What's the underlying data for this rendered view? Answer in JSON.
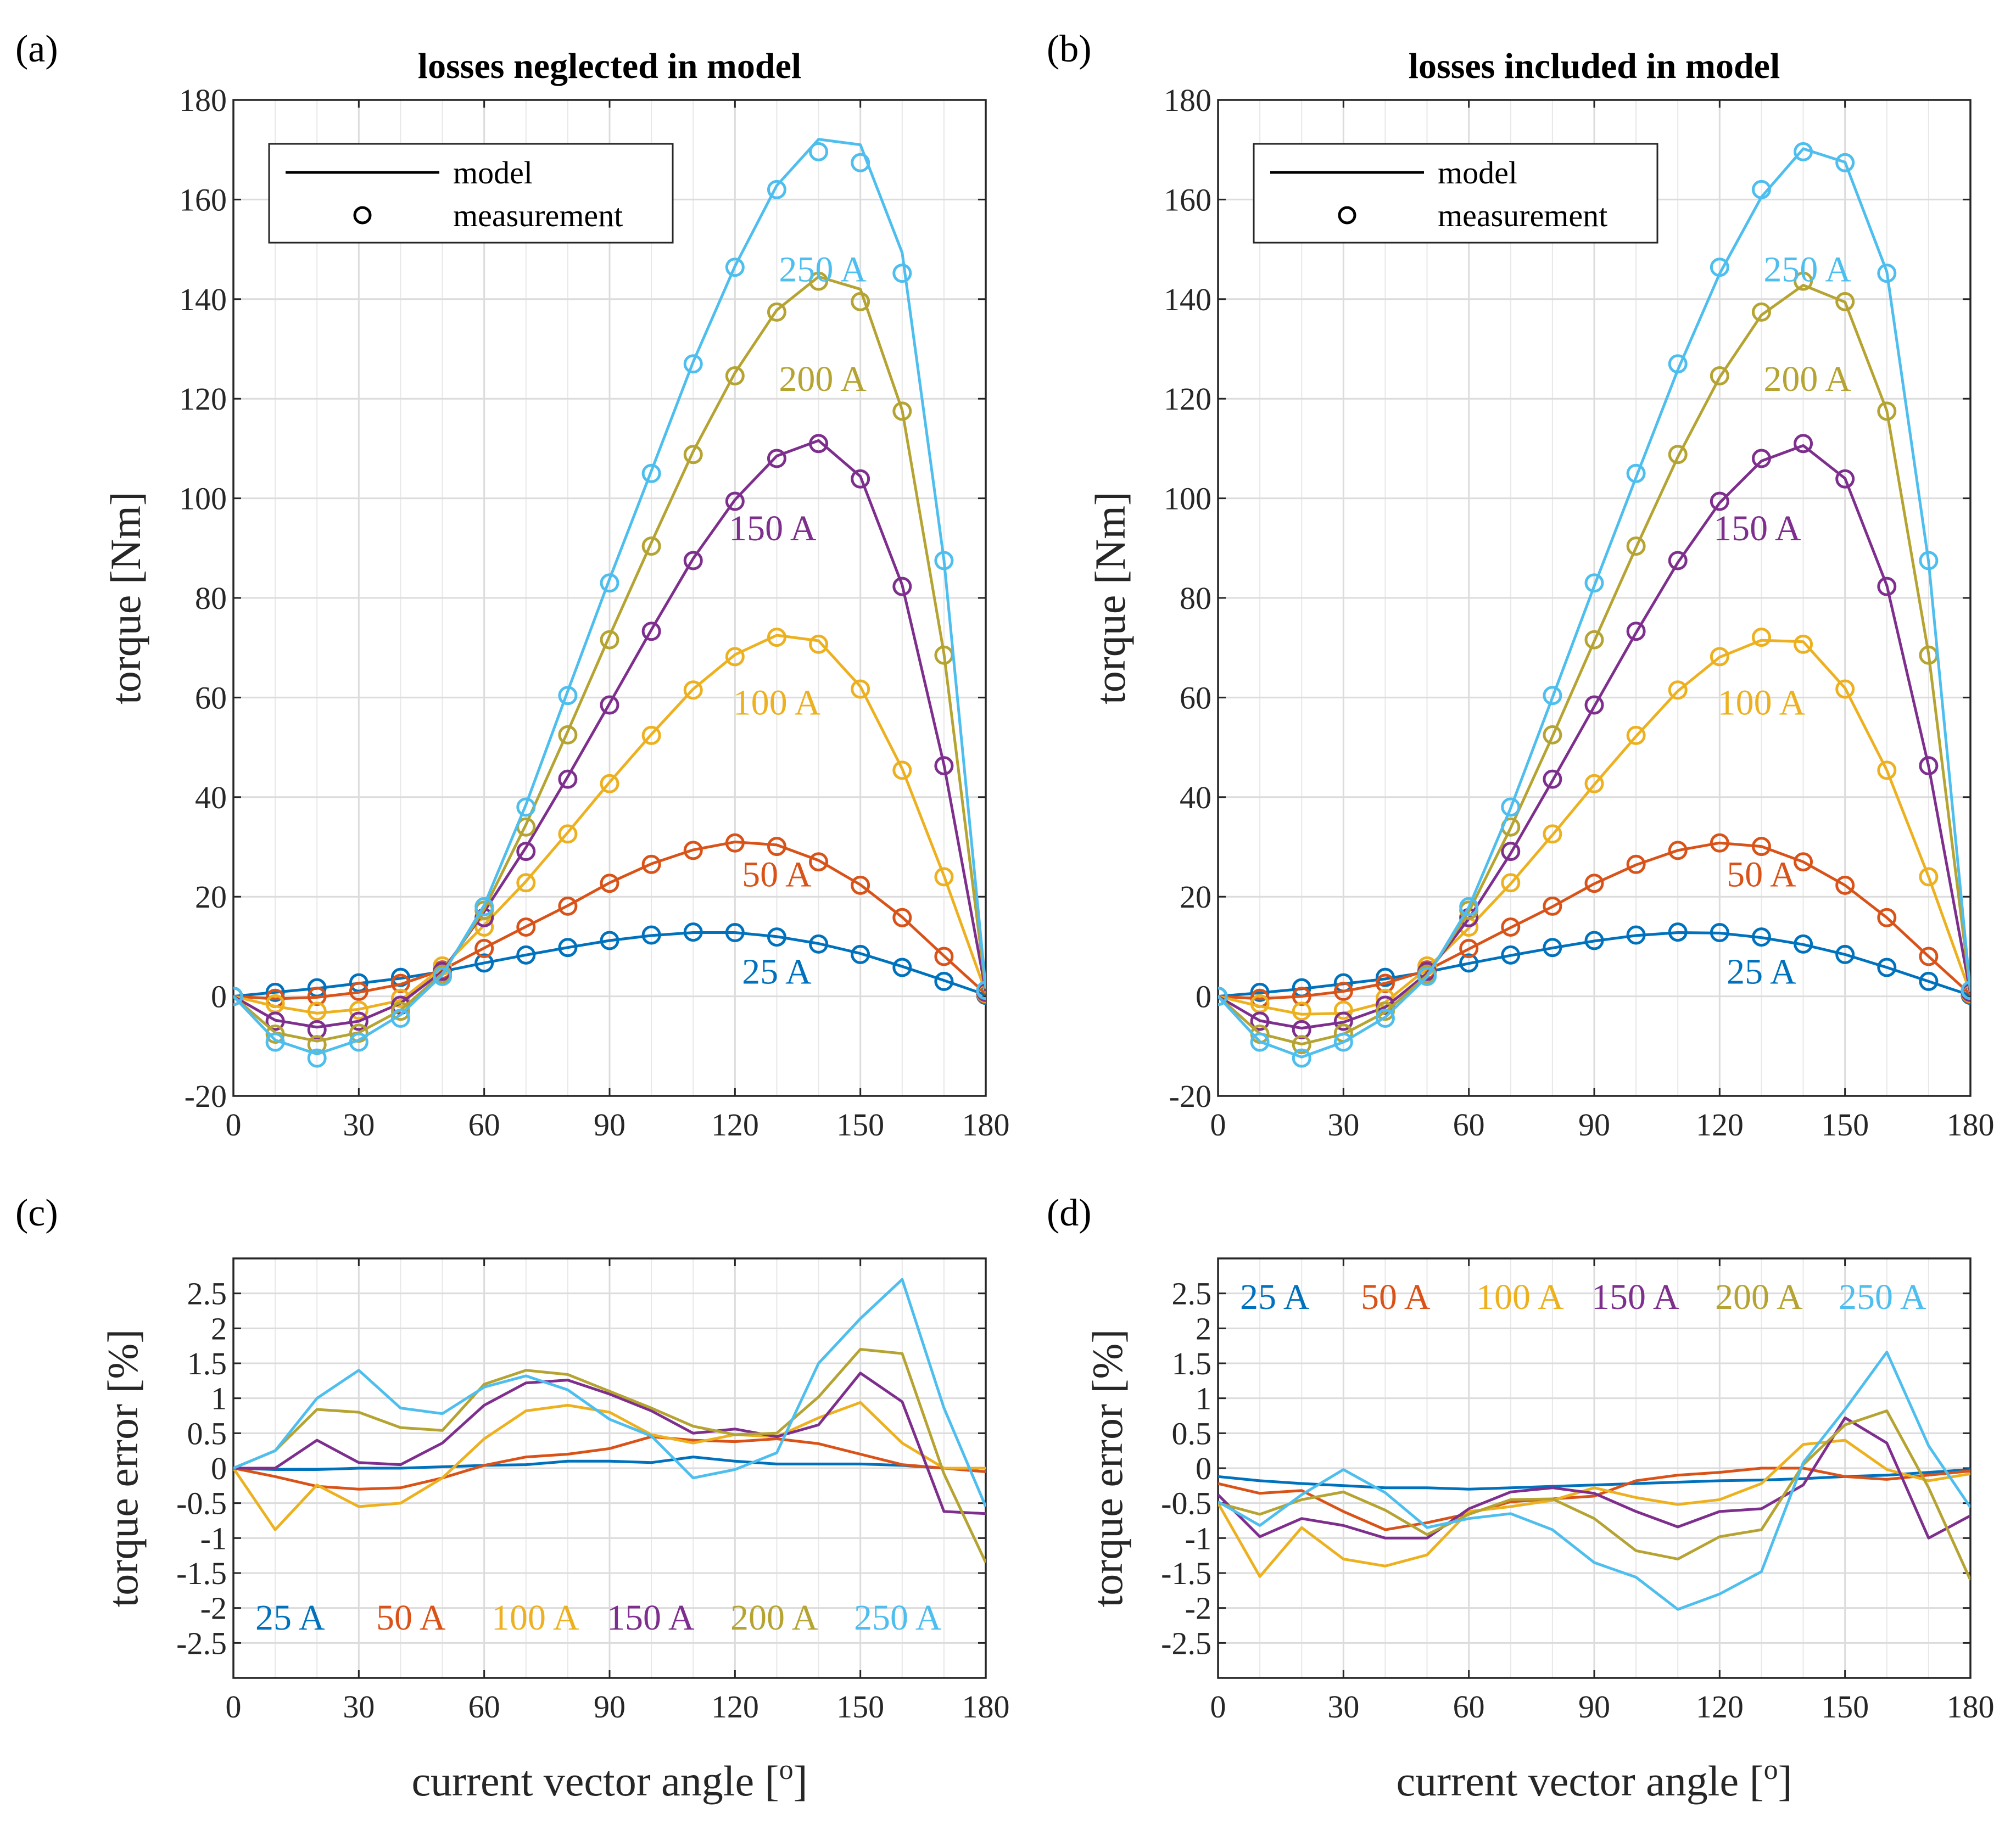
{
  "figure": {
    "colors": {
      "25 A": "#0072BD",
      "50 A": "#D95319",
      "100 A": "#EDB120",
      "150 A": "#7E2F8E",
      "200 A": "#B5A332",
      "250 A": "#4DBEEE"
    }
  },
  "chart_data": [
    {
      "id": "a",
      "type": "line",
      "panel_label": "(a)",
      "title": "losses neglected in model",
      "xlabel": "",
      "ylabel": "torque [Nm]",
      "xlim": [
        0,
        180
      ],
      "ylim": [
        -20,
        180
      ],
      "xticks": [
        0,
        30,
        60,
        90,
        120,
        150,
        180
      ],
      "yticks": [
        -20,
        0,
        20,
        40,
        60,
        80,
        100,
        120,
        140,
        160,
        180
      ],
      "grid": true,
      "legend": {
        "position": "top-left",
        "entries": [
          "model",
          "measurement"
        ]
      },
      "x": [
        0,
        10,
        20,
        30,
        40,
        50,
        60,
        70,
        80,
        90,
        100,
        110,
        120,
        130,
        140,
        150,
        160,
        170,
        180
      ],
      "series": [
        {
          "name": "25 A",
          "label_x": 130,
          "label_y": 5,
          "model": [
            0,
            0.8,
            1.6,
            2.6,
            3.6,
            5,
            6.7,
            8.3,
            9.8,
            11.2,
            12.2,
            12.8,
            12.8,
            12,
            10.6,
            8.6,
            6,
            3.2,
            0.3
          ],
          "measurement": [
            0,
            0.8,
            1.7,
            2.7,
            3.8,
            5,
            6.7,
            8.3,
            9.8,
            11.2,
            12.3,
            12.9,
            12.8,
            11.9,
            10.5,
            8.4,
            5.8,
            3,
            0.2
          ]
        },
        {
          "name": "50 A",
          "label_x": 130,
          "label_y": 24.5,
          "model": [
            0,
            -0.5,
            -0.2,
            0.8,
            2.4,
            5.3,
            9.7,
            14,
            18.2,
            22.8,
            26.6,
            29.4,
            31,
            30.4,
            27.3,
            22.4,
            15.9,
            8.1,
            0.5
          ],
          "measurement": [
            0,
            -0.4,
            0,
            1,
            2.6,
            5.3,
            9.6,
            13.9,
            18.1,
            22.7,
            26.5,
            29.3,
            30.8,
            30.1,
            27,
            22.3,
            15.8,
            8,
            0.4
          ]
        },
        {
          "name": "100 A",
          "label_x": 130,
          "label_y": 59,
          "model": [
            0,
            -2,
            -3.4,
            -2.6,
            -0.8,
            5.8,
            14.3,
            23.1,
            32.9,
            43,
            52.6,
            61.7,
            68.6,
            72.5,
            71.4,
            62.2,
            45.7,
            24.2,
            0.8
          ],
          "measurement": [
            0,
            -1.5,
            -3,
            -2.8,
            -0.4,
            6.1,
            13.9,
            22.8,
            32.6,
            42.7,
            52.4,
            61.5,
            68.2,
            72.1,
            70.7,
            61.7,
            45.4,
            24,
            0.6
          ]
        },
        {
          "name": "150 A",
          "label_x": 129,
          "label_y": 94,
          "model": [
            0,
            -4.8,
            -6.2,
            -5,
            -1.4,
            5,
            17,
            29.9,
            44.1,
            58.8,
            73.6,
            87.9,
            99.7,
            108.5,
            111.6,
            104.4,
            82.6,
            46.5,
            1
          ],
          "measurement": [
            0,
            -5,
            -6.7,
            -5,
            -1.8,
            5,
            15.8,
            29.1,
            43.6,
            58.5,
            73.3,
            87.5,
            99.4,
            108,
            111,
            103.9,
            82.3,
            46.3,
            0.8
          ]
        },
        {
          "name": "200 A",
          "label_x": 141,
          "label_y": 124,
          "model": [
            0,
            -7.3,
            -9,
            -7.3,
            -2.8,
            4.6,
            17.5,
            34.5,
            53.2,
            72.4,
            91.1,
            109.4,
            125.2,
            137.8,
            144.5,
            142,
            117.7,
            68.8,
            1.5
          ],
          "measurement": [
            0,
            -7.6,
            -9.7,
            -7.4,
            -3,
            4.4,
            17.3,
            34,
            52.5,
            71.6,
            90.4,
            108.8,
            124.6,
            137.4,
            143.6,
            139.5,
            117.5,
            68.5,
            1.2
          ]
        },
        {
          "name": "250 A",
          "label_x": 141,
          "label_y": 146,
          "model": [
            0,
            -8.8,
            -11.6,
            -8.8,
            -3.7,
            4.3,
            18.3,
            38.5,
            61.3,
            83.8,
            105.5,
            127.4,
            146.6,
            162.8,
            172.1,
            171,
            149.3,
            87.6,
            1.7
          ],
          "measurement": [
            0,
            -9.2,
            -12.4,
            -9.2,
            -4.4,
            4,
            18,
            38,
            60.4,
            83,
            105,
            127,
            146.4,
            162,
            169.6,
            167.4,
            145.2,
            87.5,
            1.2
          ]
        }
      ]
    },
    {
      "id": "b",
      "type": "line",
      "panel_label": "(b)",
      "title": "losses included in model",
      "xlabel": "",
      "ylabel": "torque [Nm]",
      "xlim": [
        0,
        180
      ],
      "ylim": [
        -20,
        180
      ],
      "xticks": [
        0,
        30,
        60,
        90,
        120,
        150,
        180
      ],
      "yticks": [
        -20,
        0,
        20,
        40,
        60,
        80,
        100,
        120,
        140,
        160,
        180
      ],
      "grid": true,
      "legend": {
        "position": "top-left",
        "entries": [
          "model",
          "measurement"
        ]
      },
      "x": [
        0,
        10,
        20,
        30,
        40,
        50,
        60,
        70,
        80,
        90,
        100,
        110,
        120,
        130,
        140,
        150,
        160,
        170,
        180
      ],
      "series": [
        {
          "name": "25 A",
          "label_x": 130,
          "label_y": 5,
          "model": [
            0,
            0.7,
            1.5,
            2.5,
            3.5,
            4.9,
            6.6,
            8.2,
            9.7,
            11.1,
            12.2,
            12.8,
            12.7,
            11.8,
            10.4,
            8.4,
            5.8,
            3,
            0.2
          ],
          "measurement": [
            0,
            0.8,
            1.7,
            2.7,
            3.8,
            5,
            6.7,
            8.3,
            9.8,
            11.2,
            12.3,
            12.9,
            12.8,
            11.9,
            10.5,
            8.4,
            5.8,
            3,
            0.2
          ]
        },
        {
          "name": "50 A",
          "label_x": 130,
          "label_y": 24.5,
          "model": [
            0,
            -0.5,
            0,
            1,
            2.6,
            5.2,
            9.5,
            13.8,
            18,
            22.6,
            26.4,
            29.3,
            30.8,
            30.1,
            27,
            22.3,
            15.8,
            8,
            0.4
          ],
          "measurement": [
            0,
            -0.4,
            0,
            1,
            2.6,
            5.3,
            9.6,
            13.9,
            18.1,
            22.7,
            26.5,
            29.3,
            30.8,
            30.1,
            27,
            22.3,
            15.8,
            8,
            0.4
          ]
        },
        {
          "name": "100 A",
          "label_x": 130,
          "label_y": 59,
          "model": [
            0,
            -2,
            -3.6,
            -3.4,
            -1.2,
            5.6,
            13.7,
            22.6,
            32.4,
            42.5,
            52.2,
            61.3,
            68.1,
            71.5,
            71.2,
            61.9,
            45.4,
            24,
            0.6
          ],
          "measurement": [
            0,
            -1.5,
            -3,
            -2.8,
            -0.4,
            6.1,
            13.9,
            22.8,
            32.6,
            42.7,
            52.4,
            61.5,
            68.2,
            72.1,
            70.7,
            61.7,
            45.4,
            24,
            0.6
          ]
        },
        {
          "name": "150 A",
          "label_x": 129,
          "label_y": 94,
          "model": [
            0,
            -4.9,
            -6.4,
            -5.2,
            -2.2,
            4.6,
            15.6,
            28.7,
            43.3,
            58.2,
            73,
            87.1,
            99.1,
            107.5,
            110.6,
            104,
            82.5,
            46.2,
            0.6
          ],
          "measurement": [
            0,
            -5,
            -6.7,
            -5,
            -1.8,
            5,
            15.8,
            29.1,
            43.6,
            58.5,
            73.3,
            87.5,
            99.4,
            108,
            111,
            103.9,
            82.3,
            46.3,
            0.8
          ]
        },
        {
          "name": "200 A",
          "label_x": 141,
          "label_y": 124,
          "model": [
            0,
            -7.5,
            -9.6,
            -7.6,
            -3.2,
            4.2,
            17,
            33.8,
            52.2,
            71.3,
            90.1,
            108.3,
            124.3,
            136.8,
            142.8,
            139.4,
            117.6,
            68.7,
            1
          ],
          "measurement": [
            0,
            -7.6,
            -9.7,
            -7.4,
            -3,
            4.4,
            17.3,
            34,
            52.5,
            71.6,
            90.4,
            108.8,
            124.6,
            137.4,
            143.6,
            139.5,
            117.5,
            68.5,
            1.2
          ]
        },
        {
          "name": "250 A",
          "label_x": 141,
          "label_y": 146,
          "model": [
            0,
            -9.1,
            -12.2,
            -9.2,
            -4.2,
            3.9,
            17.9,
            37.8,
            60,
            82.4,
            104.2,
            125.8,
            145.1,
            160.5,
            170.2,
            167.5,
            145.5,
            87.2,
            0.9
          ],
          "measurement": [
            0,
            -9.2,
            -12.4,
            -9.2,
            -4.4,
            4,
            18,
            38,
            60.4,
            83,
            105,
            127,
            146.4,
            162,
            169.6,
            167.4,
            145.2,
            87.5,
            1.2
          ]
        }
      ]
    },
    {
      "id": "c",
      "type": "line",
      "panel_label": "(c)",
      "title": "",
      "xlabel": "current vector angle [°]",
      "xlabel_main": "current vector angle [",
      "xlabel_sup": "o",
      "xlabel_end": "]",
      "ylabel": "torque error [%]",
      "xlim": [
        0,
        180
      ],
      "ylim": [
        -3,
        3
      ],
      "xticks": [
        0,
        30,
        60,
        90,
        120,
        150,
        180
      ],
      "yticks": [
        -2.5,
        -2,
        -1.5,
        -1,
        -0.5,
        0,
        0.5,
        1,
        1.5,
        2,
        2.5
      ],
      "ytick_labels": [
        "-2.5",
        "-2",
        "-1.5",
        "-1",
        "-0.5",
        "0",
        "0.5",
        "1",
        "1.5",
        "2",
        "2.5"
      ],
      "grid": true,
      "legend": {
        "position": "bottom-left",
        "entries": [
          "25 A",
          "50 A",
          "100 A",
          "150 A",
          "200 A",
          "250 A"
        ]
      },
      "x": [
        0,
        10,
        20,
        30,
        40,
        50,
        60,
        70,
        80,
        90,
        100,
        110,
        120,
        130,
        140,
        150,
        160,
        170,
        180
      ],
      "series": [
        {
          "name": "25 A",
          "values": [
            0,
            -0.02,
            -0.02,
            0,
            0,
            0.02,
            0.04,
            0.05,
            0.1,
            0.1,
            0.08,
            0.16,
            0.1,
            0.06,
            0.06,
            0.06,
            0.04,
            0,
            -0.05
          ]
        },
        {
          "name": "50 A",
          "values": [
            0,
            -0.12,
            -0.26,
            -0.3,
            -0.28,
            -0.14,
            0.04,
            0.16,
            0.2,
            0.28,
            0.45,
            0.4,
            0.38,
            0.42,
            0.35,
            0.2,
            0.05,
            0,
            -0.05
          ]
        },
        {
          "name": "100 A",
          "values": [
            0,
            -0.88,
            -0.24,
            -0.55,
            -0.5,
            -0.14,
            0.42,
            0.82,
            0.9,
            0.8,
            0.48,
            0.36,
            0.48,
            0.45,
            0.72,
            0.94,
            0.36,
            0,
            0
          ]
        },
        {
          "name": "150 A",
          "values": [
            0,
            0,
            0.4,
            0.08,
            0.05,
            0.36,
            0.9,
            1.22,
            1.26,
            1.06,
            0.82,
            0.5,
            0.56,
            0.45,
            0.62,
            1.36,
            0.95,
            -0.62,
            -0.65
          ]
        },
        {
          "name": "200 A",
          "values": [
            0,
            0.25,
            0.84,
            0.8,
            0.58,
            0.54,
            1.2,
            1.4,
            1.34,
            1.1,
            0.86,
            0.6,
            0.48,
            0.5,
            1.02,
            1.7,
            1.64,
            -0.08,
            -1.35
          ]
        },
        {
          "name": "250 A",
          "values": [
            0,
            0.25,
            1,
            1.4,
            0.86,
            0.78,
            1.16,
            1.32,
            1.12,
            0.7,
            0.46,
            -0.14,
            -0.02,
            0.22,
            1.5,
            2.14,
            2.7,
            0.86,
            -0.55
          ]
        }
      ]
    },
    {
      "id": "d",
      "type": "line",
      "panel_label": "(d)",
      "title": "",
      "xlabel": "current vector angle [°]",
      "xlabel_main": "current vector angle [",
      "xlabel_sup": "o",
      "xlabel_end": "]",
      "ylabel": "torque error [%]",
      "xlim": [
        0,
        180
      ],
      "ylim": [
        -3,
        3
      ],
      "xticks": [
        0,
        30,
        60,
        90,
        120,
        150,
        180
      ],
      "yticks": [
        -2.5,
        -2,
        -1.5,
        -1,
        -0.5,
        0,
        0.5,
        1,
        1.5,
        2,
        2.5
      ],
      "ytick_labels": [
        "-2.5",
        "-2",
        "-1.5",
        "-1",
        "-0.5",
        "0",
        "0.5",
        "1",
        "1.5",
        "2",
        "2.5"
      ],
      "grid": true,
      "legend": {
        "position": "top-left",
        "entries": [
          "25 A",
          "50 A",
          "100 A",
          "150 A",
          "200 A",
          "250 A"
        ]
      },
      "x": [
        0,
        10,
        20,
        30,
        40,
        50,
        60,
        70,
        80,
        90,
        100,
        110,
        120,
        130,
        140,
        150,
        160,
        170,
        180
      ],
      "series": [
        {
          "name": "25 A",
          "values": [
            -0.12,
            -0.18,
            -0.22,
            -0.25,
            -0.28,
            -0.28,
            -0.3,
            -0.28,
            -0.26,
            -0.24,
            -0.22,
            -0.2,
            -0.18,
            -0.17,
            -0.15,
            -0.12,
            -0.1,
            -0.06,
            -0.02
          ]
        },
        {
          "name": "50 A",
          "values": [
            -0.22,
            -0.36,
            -0.32,
            -0.62,
            -0.88,
            -0.78,
            -0.65,
            -0.48,
            -0.44,
            -0.4,
            -0.18,
            -0.1,
            -0.06,
            0,
            0,
            -0.12,
            -0.16,
            -0.1,
            -0.04
          ]
        },
        {
          "name": "100 A",
          "values": [
            -0.5,
            -1.55,
            -0.85,
            -1.3,
            -1.4,
            -1.24,
            -0.62,
            -0.55,
            -0.46,
            -0.28,
            -0.42,
            -0.52,
            -0.45,
            -0.22,
            0.34,
            0.4,
            -0.02,
            -0.18,
            -0.08
          ]
        },
        {
          "name": "150 A",
          "values": [
            -0.38,
            -0.98,
            -0.72,
            -0.82,
            -1,
            -1,
            -0.58,
            -0.34,
            -0.28,
            -0.36,
            -0.62,
            -0.84,
            -0.62,
            -0.58,
            -0.24,
            0.72,
            0.36,
            -1,
            -0.68
          ]
        },
        {
          "name": "200 A",
          "values": [
            -0.5,
            -0.66,
            -0.45,
            -0.34,
            -0.6,
            -0.95,
            -0.66,
            -0.45,
            -0.44,
            -0.72,
            -1.18,
            -1.3,
            -0.98,
            -0.88,
            0.05,
            0.62,
            0.82,
            -0.28,
            -1.6
          ]
        },
        {
          "name": "250 A",
          "values": [
            -0.48,
            -0.82,
            -0.38,
            -0.02,
            -0.35,
            -0.85,
            -0.72,
            -0.65,
            -0.88,
            -1.35,
            -1.56,
            -2.02,
            -1.8,
            -1.48,
            0.08,
            0.84,
            1.66,
            0.32,
            -0.56
          ]
        }
      ]
    }
  ]
}
